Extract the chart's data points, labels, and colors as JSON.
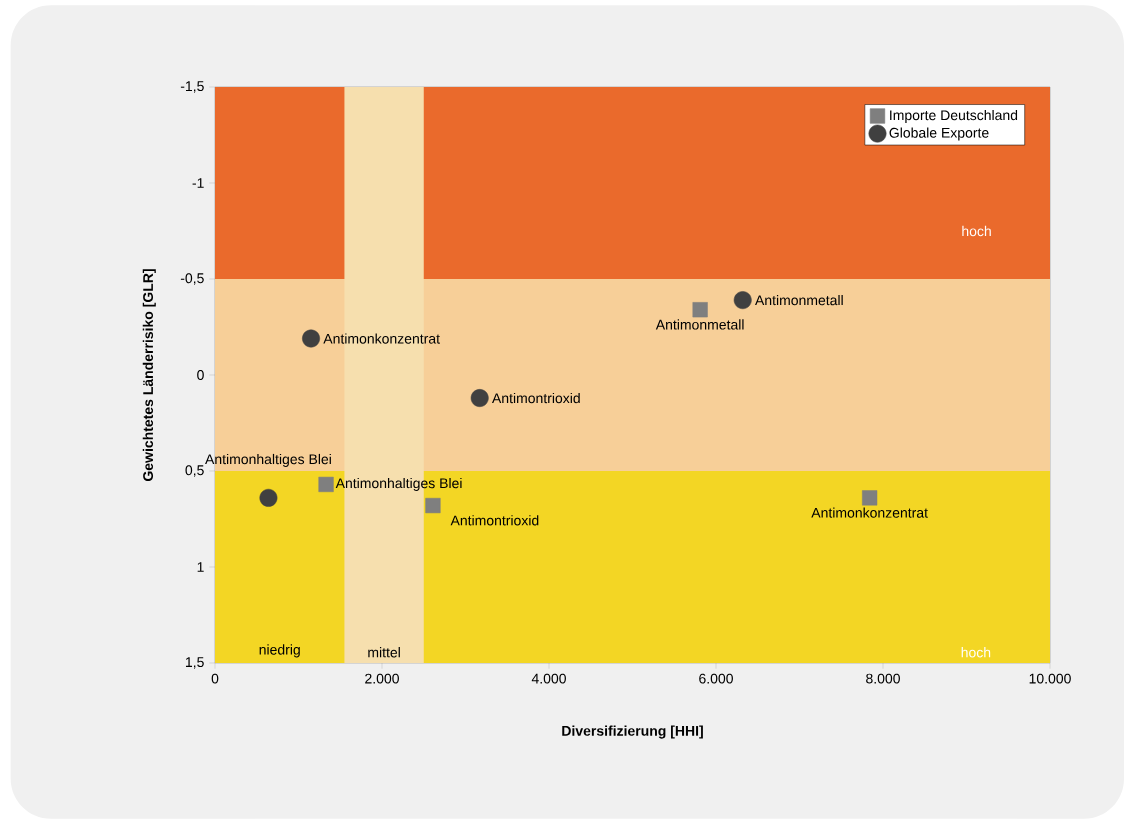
{
  "chart_data": {
    "type": "scatter",
    "xlabel": "Diversifizierung [HHI]",
    "ylabel": "Gewichtetes Länderrisiko [GLR]",
    "xlim": [
      0,
      10000
    ],
    "ylim": [
      1.5,
      -1.5
    ],
    "xticks": [
      {
        "value": 0,
        "label": "0"
      },
      {
        "value": 2000,
        "label": "2.000"
      },
      {
        "value": 4000,
        "label": "4.000"
      },
      {
        "value": 6000,
        "label": "6.000"
      },
      {
        "value": 8000,
        "label": "8.000"
      },
      {
        "value": 10000,
        "label": "10.000"
      }
    ],
    "yticks": [
      {
        "value": -1.5,
        "label": "-1,5"
      },
      {
        "value": -1,
        "label": "-1"
      },
      {
        "value": -0.5,
        "label": "-0,5"
      },
      {
        "value": 0,
        "label": "0"
      },
      {
        "value": 0.5,
        "label": "0,5"
      },
      {
        "value": 1,
        "label": "1"
      },
      {
        "value": 1.5,
        "label": "1,5"
      }
    ],
    "legend": "top right",
    "grid": false,
    "bands": [
      {
        "axis": "y",
        "from": -1.5,
        "to": -0.5,
        "label": "hoch",
        "color": "#ea6a2c"
      },
      {
        "axis": "y",
        "from": -0.5,
        "to": 0.5,
        "color": "#f7cf98"
      },
      {
        "axis": "y",
        "from": 0.5,
        "to": 1.5,
        "color": "#f3d624"
      },
      {
        "axis": "x",
        "from": 1550,
        "to": 2500,
        "label": "mittel",
        "color": "#f6dfae"
      }
    ],
    "annotations": [
      "niedrig",
      "hoch"
    ],
    "series": [
      {
        "name": "Importe Deutschland",
        "color": "#7f7f7f",
        "marker": "square",
        "x": [
          5810,
          1330,
          2610,
          7840
        ],
        "values": [
          -0.34,
          0.57,
          0.68,
          0.64
        ],
        "value_labels": [
          "Antimonmetall",
          "Antimonhaltiges Blei",
          "Antimontrioxid",
          "Antimonkonzentrat"
        ]
      },
      {
        "name": "Globale Exporte",
        "color": "#404040",
        "marker": "circle",
        "x": [
          6320,
          1150,
          3170,
          640
        ],
        "values": [
          -0.39,
          -0.19,
          0.12,
          0.64
        ],
        "value_labels": [
          "Antimonmetall",
          "Antimonkonzentrat",
          "Antimontrioxid",
          "Antimonhaltiges Blei"
        ]
      }
    ]
  }
}
